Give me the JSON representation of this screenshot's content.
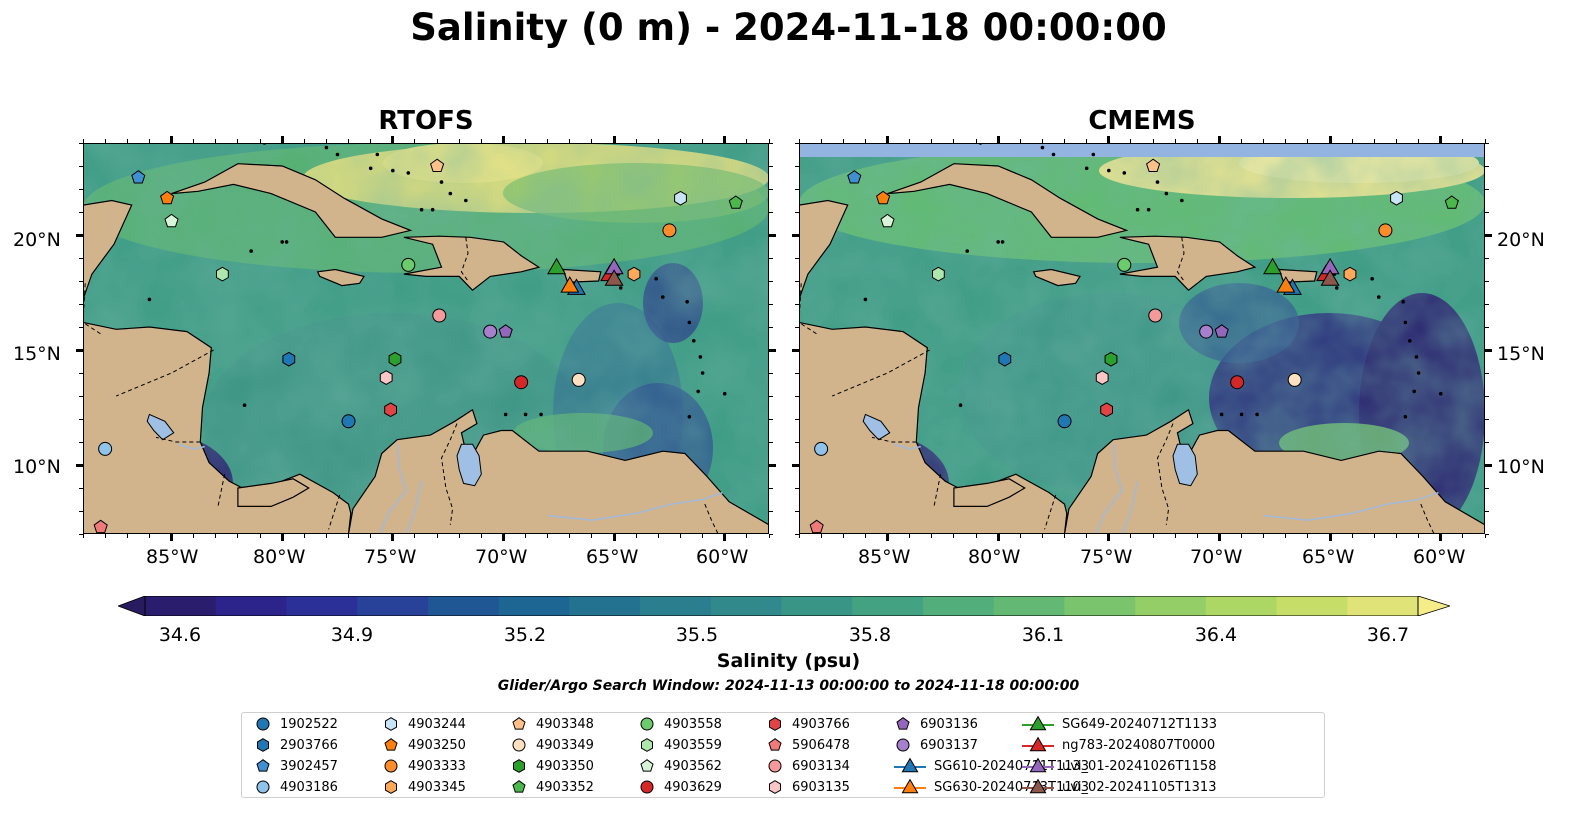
{
  "title": "Salinity (0 m) - 2024-11-18 00:00:00",
  "panels": [
    {
      "title": "RTOFS"
    },
    {
      "title": "CMEMS"
    }
  ],
  "axes": {
    "lon_labels": [
      "85°W",
      "80°W",
      "75°W",
      "70°W",
      "65°W",
      "60°W"
    ],
    "lat_labels": [
      "20°N",
      "15°N",
      "10°N"
    ]
  },
  "colorbar": {
    "label": "Salinity (psu)",
    "ticks": [
      "34.6",
      "34.9",
      "35.2",
      "35.5",
      "35.8",
      "36.1",
      "36.4",
      "36.7"
    ],
    "range": [
      34.6,
      36.7
    ],
    "colormap": "haline",
    "extend": "both"
  },
  "search_window": "Glider/Argo Search Window: 2024-11-13 00:00:00 to 2024-11-18 00:00:00",
  "colors": {
    "land": "#d2b48c",
    "lakes": "#9fbfe4",
    "rivers": "#a4b9d6",
    "cmems_missing": "#93b4e0"
  },
  "legend": [
    {
      "label": "1902522",
      "marker": "circle",
      "color": "#1f77b4"
    },
    {
      "label": "2903766",
      "marker": "hexagon",
      "color": "#1f77b4"
    },
    {
      "label": "3902457",
      "marker": "pentagon",
      "color": "#3f8fd1"
    },
    {
      "label": "4903186",
      "marker": "circle",
      "color": "#8fc3ea"
    },
    {
      "label": "4903244",
      "marker": "hexagon",
      "color": "#c8e4f7"
    },
    {
      "label": "4903250",
      "marker": "pentagon",
      "color": "#ff7f0e"
    },
    {
      "label": "4903333",
      "marker": "circle",
      "color": "#ff8c2a"
    },
    {
      "label": "4903345",
      "marker": "hexagon",
      "color": "#ffa85a"
    },
    {
      "label": "4903348",
      "marker": "pentagon",
      "color": "#ffc08a"
    },
    {
      "label": "4903349",
      "marker": "circle",
      "color": "#ffe0c0"
    },
    {
      "label": "4903350",
      "marker": "hexagon",
      "color": "#2ca02c"
    },
    {
      "label": "4903352",
      "marker": "pentagon",
      "color": "#4cb84c"
    },
    {
      "label": "4903558",
      "marker": "circle",
      "color": "#6ccb6c"
    },
    {
      "label": "4903559",
      "marker": "hexagon",
      "color": "#aee6ae"
    },
    {
      "label": "4903562",
      "marker": "pentagon",
      "color": "#d8f4d8"
    },
    {
      "label": "4903629",
      "marker": "circle",
      "color": "#d62728"
    },
    {
      "label": "4903766",
      "marker": "hexagon",
      "color": "#e04444"
    },
    {
      "label": "5906478",
      "marker": "pentagon",
      "color": "#f07a7a"
    },
    {
      "label": "6903134",
      "marker": "circle",
      "color": "#f49a9a"
    },
    {
      "label": "6903135",
      "marker": "hexagon",
      "color": "#fcc6c6"
    },
    {
      "label": "6903136",
      "marker": "pentagon",
      "color": "#9467bd"
    },
    {
      "label": "6903137",
      "marker": "circle",
      "color": "#a680cc"
    },
    {
      "label": "SG610-20240711T1133",
      "marker": "triangle",
      "color": "#1f77b4"
    },
    {
      "label": "SG630-20240713T1103",
      "marker": "triangle",
      "color": "#ff7f0e"
    },
    {
      "label": "SG649-20240712T1133",
      "marker": "triangle",
      "color": "#2ca02c"
    },
    {
      "label": "ng783-20240807T0000",
      "marker": "triangle",
      "color": "#d62728"
    },
    {
      "label": "uvi_01-20241026T1158",
      "marker": "triangle",
      "color": "#9467bd"
    },
    {
      "label": "uvi_02-20241105T1313",
      "marker": "triangle",
      "color": "#8c564b"
    }
  ],
  "chart_data": {
    "type": "scatter",
    "map_extent": {
      "lon": [
        -89,
        -58
      ],
      "lat": [
        7,
        24
      ]
    },
    "platforms": [
      {
        "id": "1902522",
        "lon": -77.0,
        "lat": 11.9
      },
      {
        "id": "2903766",
        "lon": -79.7,
        "lat": 14.6
      },
      {
        "id": "3902457",
        "lon": -86.5,
        "lat": 22.5
      },
      {
        "id": "4903186",
        "lon": -88.0,
        "lat": 10.7
      },
      {
        "id": "4903244",
        "lon": -62.0,
        "lat": 21.6
      },
      {
        "id": "4903250",
        "lon": -85.2,
        "lat": 21.6
      },
      {
        "id": "4903333",
        "lon": -62.5,
        "lat": 20.2
      },
      {
        "id": "4903345",
        "lon": -64.1,
        "lat": 18.3
      },
      {
        "id": "4903348",
        "lon": -73.0,
        "lat": 23.0
      },
      {
        "id": "4903349",
        "lon": -66.6,
        "lat": 13.7
      },
      {
        "id": "4903350",
        "lon": -74.9,
        "lat": 14.6
      },
      {
        "id": "4903352",
        "lon": -59.5,
        "lat": 21.4
      },
      {
        "id": "4903558",
        "lon": -74.3,
        "lat": 18.7
      },
      {
        "id": "4903559",
        "lon": -82.7,
        "lat": 18.3
      },
      {
        "id": "4903562",
        "lon": -85.0,
        "lat": 20.6
      },
      {
        "id": "4903629",
        "lon": -69.2,
        "lat": 13.6
      },
      {
        "id": "4903766",
        "lon": -75.1,
        "lat": 12.4
      },
      {
        "id": "5906478",
        "lon": -88.2,
        "lat": 7.3
      },
      {
        "id": "6903134",
        "lon": -72.9,
        "lat": 16.5
      },
      {
        "id": "6903135",
        "lon": -75.3,
        "lat": 13.8
      },
      {
        "id": "6903136",
        "lon": -69.9,
        "lat": 15.8
      },
      {
        "id": "6903137",
        "lon": -70.6,
        "lat": 15.8
      }
    ],
    "gliders": [
      {
        "id": "SG610-20240711T1133",
        "lon": -66.7,
        "lat": 17.7
      },
      {
        "id": "SG630-20240713T1103",
        "lon": -67.0,
        "lat": 17.8
      },
      {
        "id": "SG649-20240712T1133",
        "lon": -67.6,
        "lat": 18.6
      },
      {
        "id": "ng783-20240807T0000",
        "lon": -65.2,
        "lat": 18.3
      },
      {
        "id": "uvi_01-20241026T1158",
        "lon": -65.0,
        "lat": 18.6
      },
      {
        "id": "uvi_02-20241105T1313",
        "lon": -65.0,
        "lat": 18.1
      }
    ]
  }
}
